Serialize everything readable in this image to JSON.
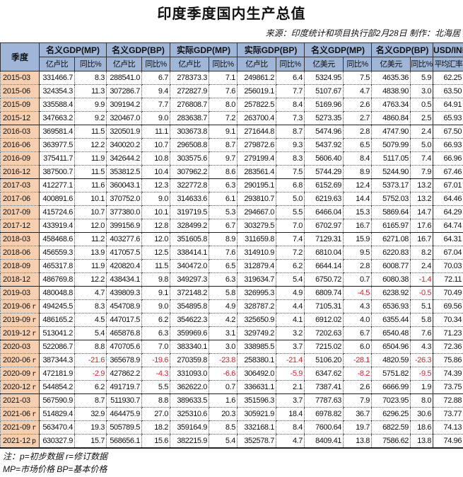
{
  "title": "印度季度国内生产总值",
  "source": "来源：印度统计和项目执行部2月28日  制作：北海居",
  "header": {
    "quarter": "季度",
    "groups": [
      "名义GDP(MP)",
      "名义GDP(BP)",
      "实际GDP(MP)",
      "实际GDP(BP)",
      "名义GDP(MP)",
      "名义GDP(BP)",
      "USD/INR"
    ],
    "subs": [
      "亿卢比",
      "同比%",
      "亿卢比",
      "同比%",
      "亿卢比",
      "同比%",
      "亿卢比",
      "同比%",
      "亿美元",
      "同比%",
      "亿美元",
      "同比%",
      "平均汇率"
    ]
  },
  "rows": [
    {
      "q": "2015-03",
      "f": "",
      "v": [
        "331466.7",
        "8.3",
        "288541.0",
        "6.7",
        "278373.3",
        "7.1",
        "249861.2",
        "6.4",
        "5324.95",
        "7.5",
        "4635.36",
        "5.9",
        "62.25"
      ]
    },
    {
      "q": "2015-06",
      "f": "",
      "v": [
        "324354.3",
        "11.3",
        "307286.7",
        "9.4",
        "272827.9",
        "7.6",
        "256019.1",
        "7.7",
        "5107.67",
        "4.7",
        "4838.90",
        "3.0",
        "63.50"
      ]
    },
    {
      "q": "2015-09",
      "f": "",
      "v": [
        "335588.4",
        "9.9",
        "309194.2",
        "7.7",
        "276808.7",
        "8.0",
        "257822.5",
        "8.4",
        "5169.96",
        "2.6",
        "4763.34",
        "0.5",
        "64.91"
      ]
    },
    {
      "q": "2015-12",
      "f": "",
      "v": [
        "347663.2",
        "9.2",
        "320467.0",
        "9.0",
        "283638.7",
        "7.2",
        "263700.4",
        "7.3",
        "5273.35",
        "2.7",
        "4860.84",
        "2.5",
        "65.93"
      ]
    },
    {
      "q": "2016-03",
      "f": "",
      "v": [
        "369581.4",
        "11.5",
        "320501.9",
        "11.1",
        "303673.8",
        "9.1",
        "271644.8",
        "8.7",
        "5474.96",
        "2.8",
        "4747.90",
        "2.4",
        "67.50"
      ]
    },
    {
      "q": "2016-06",
      "f": "",
      "v": [
        "363977.5",
        "12.2",
        "340020.2",
        "10.7",
        "296508.8",
        "8.7",
        "279872.6",
        "9.3",
        "5437.92",
        "6.5",
        "5079.99",
        "5.0",
        "66.93"
      ]
    },
    {
      "q": "2016-09",
      "f": "",
      "v": [
        "375411.7",
        "11.9",
        "342644.2",
        "10.8",
        "303575.6",
        "9.7",
        "279199.4",
        "8.3",
        "5606.40",
        "8.4",
        "5117.05",
        "7.4",
        "66.96"
      ]
    },
    {
      "q": "2016-12",
      "f": "",
      "v": [
        "387500.7",
        "11.5",
        "353812.5",
        "10.4",
        "307962.2",
        "8.6",
        "283561.4",
        "7.5",
        "5744.29",
        "8.9",
        "5244.90",
        "7.9",
        "67.46"
      ]
    },
    {
      "q": "2017-03",
      "f": "",
      "v": [
        "412277.1",
        "11.6",
        "360043.1",
        "12.3",
        "322772.8",
        "6.3",
        "290195.1",
        "6.8",
        "6152.69",
        "12.4",
        "5373.17",
        "13.2",
        "67.01"
      ]
    },
    {
      "q": "2017-06",
      "f": "",
      "v": [
        "400891.6",
        "10.1",
        "370752.0",
        "9.0",
        "314633.6",
        "6.1",
        "293810.7",
        "5.0",
        "6219.63",
        "14.4",
        "5752.03",
        "13.2",
        "64.46"
      ]
    },
    {
      "q": "2017-09",
      "f": "",
      "v": [
        "415724.6",
        "10.7",
        "377380.0",
        "10.1",
        "319719.5",
        "5.3",
        "294667.0",
        "5.5",
        "6466.04",
        "15.3",
        "5869.64",
        "14.7",
        "64.29"
      ]
    },
    {
      "q": "2017-12",
      "f": "",
      "v": [
        "433919.4",
        "12.0",
        "399156.9",
        "12.8",
        "328499.2",
        "6.7",
        "303279.5",
        "7.0",
        "6702.97",
        "16.7",
        "6165.97",
        "17.6",
        "64.74"
      ]
    },
    {
      "q": "2018-03",
      "f": "",
      "v": [
        "458468.6",
        "11.2",
        "403277.6",
        "12.0",
        "351605.8",
        "8.9",
        "311659.8",
        "7.4",
        "7129.31",
        "15.9",
        "6271.08",
        "16.7",
        "64.31"
      ]
    },
    {
      "q": "2018-06",
      "f": "",
      "v": [
        "456559.3",
        "13.9",
        "417057.5",
        "12.5",
        "338414.1",
        "7.6",
        "314910.9",
        "7.2",
        "6810.04",
        "9.5",
        "6220.83",
        "8.2",
        "67.04"
      ]
    },
    {
      "q": "2018-09",
      "f": "",
      "v": [
        "465317.8",
        "11.9",
        "420820.4",
        "11.5",
        "340472.0",
        "6.5",
        "312879.4",
        "6.2",
        "6644.14",
        "2.8",
        "6008.77",
        "2.4",
        "70.03"
      ]
    },
    {
      "q": "2018-12",
      "f": "",
      "v": [
        "486769.8",
        "12.2",
        "438434.1",
        "9.8",
        "349297.3",
        "6.3",
        "319634.7",
        "5.4",
        "6750.72",
        "0.7",
        "6080.38",
        "-1.4",
        "72.11"
      ]
    },
    {
      "q": "2019-03",
      "f": "",
      "v": [
        "480048.8",
        "4.7",
        "439809.3",
        "9.1",
        "372148.2",
        "5.8",
        "326995.3",
        "4.9",
        "6809.74",
        "-4.5",
        "6238.92",
        "-0.5",
        "70.49"
      ]
    },
    {
      "q": "2019-06",
      "f": "r",
      "v": [
        "494245.5",
        "8.3",
        "454708.9",
        "9.0",
        "354895.8",
        "4.9",
        "328787.2",
        "4.4",
        "7105.31",
        "4.3",
        "6536.93",
        "5.1",
        "69.56"
      ]
    },
    {
      "q": "2019-09",
      "f": "r",
      "v": [
        "486165.2",
        "4.5",
        "447017.5",
        "6.2",
        "354622.3",
        "4.2",
        "325650.9",
        "4.1",
        "6912.02",
        "4.0",
        "6355.44",
        "5.8",
        "70.34"
      ]
    },
    {
      "q": "2019-12",
      "f": "r",
      "v": [
        "513041.2",
        "5.4",
        "465876.8",
        "6.3",
        "359969.6",
        "3.1",
        "329749.2",
        "3.2",
        "7202.63",
        "6.7",
        "6540.48",
        "7.6",
        "71.23"
      ]
    },
    {
      "q": "2020-03",
      "f": "",
      "v": [
        "522086.7",
        "8.8",
        "470705.6",
        "7.0",
        "383340.1",
        "3.0",
        "338985.5",
        "3.7",
        "7215.02",
        "6.0",
        "6504.96",
        "4.3",
        "72.36"
      ]
    },
    {
      "q": "2020-06",
      "f": "r",
      "v": [
        "387344.3",
        "-21.6",
        "365678.9",
        "-19.6",
        "270359.8",
        "-23.8",
        "258380.1",
        "-21.4",
        "5106.20",
        "-28.1",
        "4820.59",
        "-26.3",
        "75.86"
      ]
    },
    {
      "q": "2020-09",
      "f": "r",
      "v": [
        "472181.9",
        "-2.9",
        "427862.2",
        "-4.3",
        "331093.0",
        "-6.6",
        "306492.0",
        "-5.9",
        "6347.62",
        "-8.2",
        "5751.82",
        "-9.5",
        "74.39"
      ]
    },
    {
      "q": "2020-12",
      "f": "r",
      "v": [
        "544854.2",
        "6.2",
        "491719.7",
        "5.5",
        "362622.0",
        "0.7",
        "336631.1",
        "2.1",
        "7387.41",
        "2.6",
        "6666.99",
        "1.9",
        "73.75"
      ]
    },
    {
      "q": "2021-03",
      "f": "",
      "v": [
        "567590.9",
        "8.7",
        "511930.7",
        "8.8",
        "389633.5",
        "1.6",
        "351596.3",
        "3.7",
        "7787.63",
        "7.9",
        "7023.95",
        "8.0",
        "72.88"
      ]
    },
    {
      "q": "2021-06",
      "f": "r",
      "v": [
        "514829.4",
        "32.9",
        "464475.9",
        "27.0",
        "325310.6",
        "20.3",
        "305921.9",
        "18.4",
        "6978.82",
        "36.7",
        "6296.25",
        "30.6",
        "73.77"
      ]
    },
    {
      "q": "2021-09",
      "f": "r",
      "v": [
        "563470.4",
        "19.3",
        "505789.5",
        "18.2",
        "359164.9",
        "8.5",
        "332168.1",
        "8.4",
        "7600.64",
        "19.7",
        "6822.59",
        "18.6",
        "74.13"
      ]
    },
    {
      "q": "2021-12",
      "f": "p",
      "v": [
        "630327.9",
        "15.7",
        "568656.1",
        "15.6",
        "382215.9",
        "5.4",
        "352578.7",
        "4.7",
        "8409.41",
        "13.8",
        "7586.62",
        "13.8",
        "74.96"
      ]
    }
  ],
  "notes": [
    "注：p=初步数据 r=修订数据",
    "MP=市场价格  BP=基本价格"
  ],
  "colors": {
    "header_bg": "#9fb6d8",
    "quarter_bg": "#f8cfae",
    "negative": "#e0202a"
  }
}
